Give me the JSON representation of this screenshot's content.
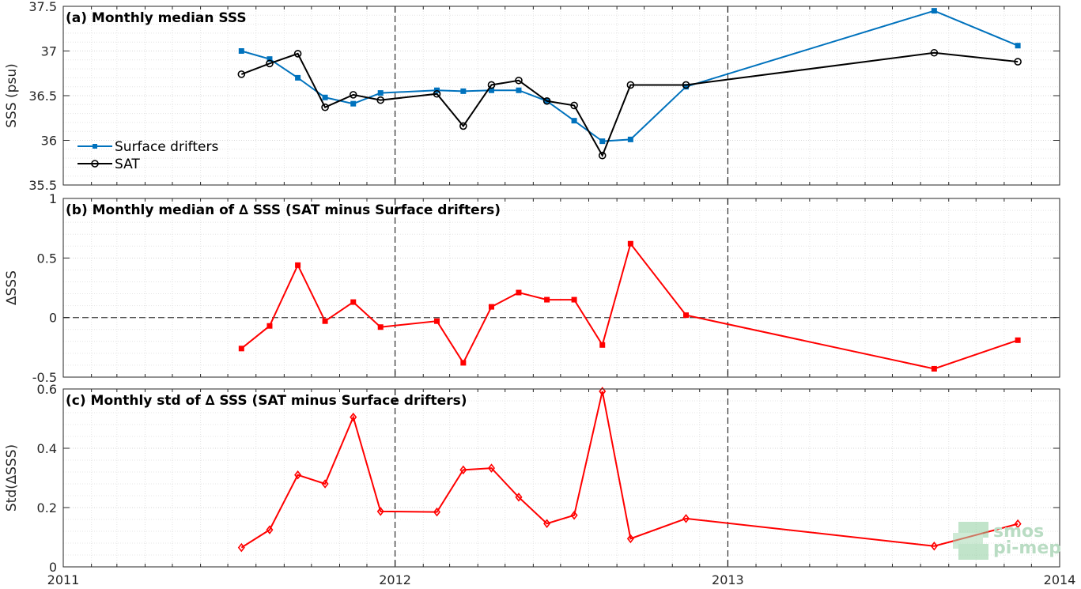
{
  "chart_data": [
    {
      "type": "line",
      "title": "(a) Monthly median SSS",
      "ylabel": "SSS (psu)",
      "xlim": [
        "2011-01-01",
        "2014-01-01"
      ],
      "ylim": [
        35.5,
        37.5
      ],
      "yticks": [
        "35.5",
        "36",
        "36.5",
        "37",
        "37.5"
      ],
      "legend_position": "lower-left",
      "grid": true,
      "series": [
        {
          "name": "Surface drifters",
          "color": "#0072bd",
          "marker": "square",
          "points": [
            [
              "2011-07-16",
              37.0
            ],
            [
              "2011-08-16",
              36.91
            ],
            [
              "2011-09-16",
              36.7
            ],
            [
              "2011-10-16",
              36.48
            ],
            [
              "2011-11-16",
              36.41
            ],
            [
              "2011-12-16",
              36.53
            ],
            [
              "2012-02-16",
              36.56
            ],
            [
              "2012-03-16",
              36.55
            ],
            [
              "2012-04-16",
              36.56
            ],
            [
              "2012-05-16",
              36.56
            ],
            [
              "2012-06-16",
              36.44
            ],
            [
              "2012-07-16",
              36.22
            ],
            [
              "2012-08-16",
              35.99
            ],
            [
              "2012-09-16",
              36.01
            ],
            [
              "2012-11-16",
              36.6
            ],
            [
              "2013-08-16",
              37.45
            ],
            [
              "2013-11-16",
              37.06
            ]
          ]
        },
        {
          "name": "SAT",
          "color": "#000000",
          "marker": "circle",
          "points": [
            [
              "2011-07-16",
              36.74
            ],
            [
              "2011-08-16",
              36.86
            ],
            [
              "2011-09-16",
              36.97
            ],
            [
              "2011-10-16",
              36.37
            ],
            [
              "2011-11-16",
              36.51
            ],
            [
              "2011-12-16",
              36.45
            ],
            [
              "2012-02-16",
              36.52
            ],
            [
              "2012-03-16",
              36.16
            ],
            [
              "2012-04-16",
              36.62
            ],
            [
              "2012-05-16",
              36.67
            ],
            [
              "2012-06-16",
              36.44
            ],
            [
              "2012-07-16",
              36.39
            ],
            [
              "2012-08-16",
              35.83
            ],
            [
              "2012-09-16",
              36.62
            ],
            [
              "2012-11-16",
              36.62
            ],
            [
              "2013-08-16",
              36.98
            ],
            [
              "2013-11-16",
              36.88
            ]
          ]
        }
      ],
      "vlines": [
        "2012-01-01",
        "2013-01-01"
      ]
    },
    {
      "type": "line",
      "title": "(b) Monthly median of ∆ SSS (SAT minus Surface drifters)",
      "ylabel": "∆SSS",
      "ylim": [
        -0.5,
        1
      ],
      "yticks": [
        "-0.5",
        "0",
        "0.5",
        "1"
      ],
      "grid": true,
      "hline": 0,
      "series": [
        {
          "color": "#ff0000",
          "marker": "square",
          "points": [
            [
              "2011-07-16",
              -0.26
            ],
            [
              "2011-08-16",
              -0.07
            ],
            [
              "2011-09-16",
              0.44
            ],
            [
              "2011-10-16",
              -0.03
            ],
            [
              "2011-11-16",
              0.13
            ],
            [
              "2011-12-16",
              -0.08
            ],
            [
              "2012-02-16",
              -0.03
            ],
            [
              "2012-03-16",
              -0.38
            ],
            [
              "2012-04-16",
              0.09
            ],
            [
              "2012-05-16",
              0.21
            ],
            [
              "2012-06-16",
              0.15
            ],
            [
              "2012-07-16",
              0.15
            ],
            [
              "2012-08-16",
              -0.23
            ],
            [
              "2012-09-16",
              0.62
            ],
            [
              "2012-11-16",
              0.02
            ],
            [
              "2013-08-16",
              -0.43
            ],
            [
              "2013-11-16",
              -0.19
            ]
          ]
        }
      ],
      "vlines": [
        "2012-01-01",
        "2013-01-01"
      ]
    },
    {
      "type": "line",
      "title": "(c) Monthly std of ∆ SSS (SAT minus Surface drifters)",
      "ylabel": "Std(∆SSS)",
      "ylim": [
        0,
        0.6
      ],
      "yticks": [
        "0",
        "0.2",
        "0.4",
        "0.6"
      ],
      "xticks": [
        "2011",
        "2012",
        "2013",
        "2014"
      ],
      "grid": true,
      "series": [
        {
          "color": "#ff0000",
          "marker": "diamond",
          "points": [
            [
              "2011-07-16",
              0.065
            ],
            [
              "2011-08-16",
              0.125
            ],
            [
              "2011-09-16",
              0.31
            ],
            [
              "2011-10-16",
              0.28
            ],
            [
              "2011-11-16",
              0.505
            ],
            [
              "2011-12-16",
              0.187
            ],
            [
              "2012-02-16",
              0.185
            ],
            [
              "2012-03-16",
              0.327
            ],
            [
              "2012-04-16",
              0.333
            ],
            [
              "2012-05-16",
              0.235
            ],
            [
              "2012-06-16",
              0.146
            ],
            [
              "2012-07-16",
              0.174
            ],
            [
              "2012-08-16",
              0.592
            ],
            [
              "2012-09-16",
              0.095
            ],
            [
              "2012-11-16",
              0.163
            ],
            [
              "2013-08-16",
              0.07
            ],
            [
              "2013-11-16",
              0.145
            ]
          ]
        }
      ],
      "vlines": [
        "2012-01-01",
        "2013-01-01"
      ]
    }
  ],
  "logo": {
    "line1": "smos",
    "line2": "pi-mep"
  }
}
